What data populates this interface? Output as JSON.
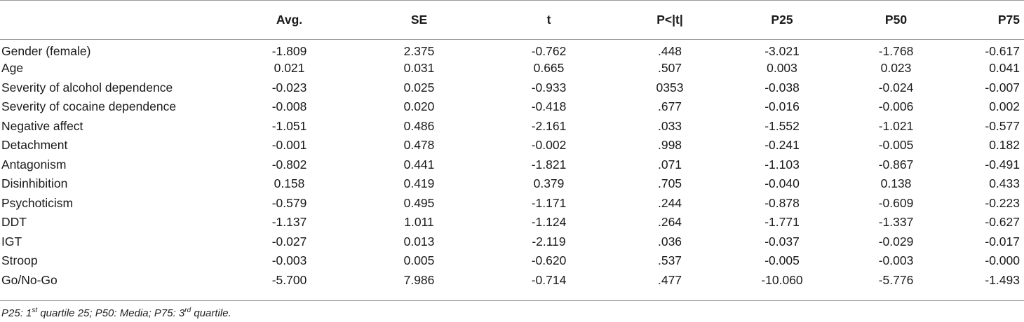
{
  "table": {
    "columns": [
      "",
      "Avg.",
      "SE",
      "t",
      "P<|t|",
      "P25",
      "P50",
      "P75"
    ],
    "rows": [
      [
        "Gender (female)",
        "-1.809",
        "2.375",
        "-0.762",
        ".448",
        "-3.021",
        "-1.768",
        "-0.617"
      ],
      [
        "Age",
        "0.021",
        "0.031",
        "0.665",
        ".507",
        "0.003",
        "0.023",
        "0.041"
      ],
      [
        "Severity of alcohol dependence",
        "-0.023",
        "0.025",
        "-0.933",
        "0353",
        "-0.038",
        "-0.024",
        "-0.007"
      ],
      [
        "Severity of cocaine dependence",
        "-0.008",
        "0.020",
        "-0.418",
        ".677",
        "-0.016",
        "-0.006",
        "0.002"
      ],
      [
        "Negative affect",
        "-1.051",
        "0.486",
        "-2.161",
        ".033",
        "-1.552",
        "-1.021",
        "-0.577"
      ],
      [
        "Detachment",
        "-0.001",
        "0.478",
        "-0.002",
        ".998",
        "-0.241",
        "-0.005",
        "0.182"
      ],
      [
        "Antagonism",
        "-0.802",
        "0.441",
        "-1.821",
        ".071",
        "-1.103",
        "-0.867",
        "-0.491"
      ],
      [
        "Disinhibition",
        "0.158",
        "0.419",
        "0.379",
        ".705",
        "-0.040",
        "0.138",
        "0.433"
      ],
      [
        "Psychoticism",
        "-0.579",
        "0.495",
        "-1.171",
        ".244",
        "-0.878",
        "-0.609",
        "-0.223"
      ],
      [
        "DDT",
        "-1.137",
        "1.011",
        "-1.124",
        ".264",
        "-1.771",
        "-1.337",
        "-0.627"
      ],
      [
        "IGT",
        "-0.027",
        "0.013",
        "-2.119",
        ".036",
        "-0.037",
        "-0.029",
        "-0.017"
      ],
      [
        "Stroop",
        "-0.003",
        "0.005",
        "-0.620",
        ".537",
        "-0.005",
        "-0.003",
        "-0.000"
      ],
      [
        "Go/No-Go",
        "-5.700",
        "7.986",
        "-0.714",
        ".477",
        "-10.060",
        "-5.776",
        "-1.493"
      ]
    ]
  },
  "footnote": {
    "p25_prefix": "P25: 1",
    "p25_sup": "st",
    "p25_rest": " quartile 25; P50: Media; P75: 3",
    "p75_sup": "rd",
    "p75_rest": " quartile."
  }
}
